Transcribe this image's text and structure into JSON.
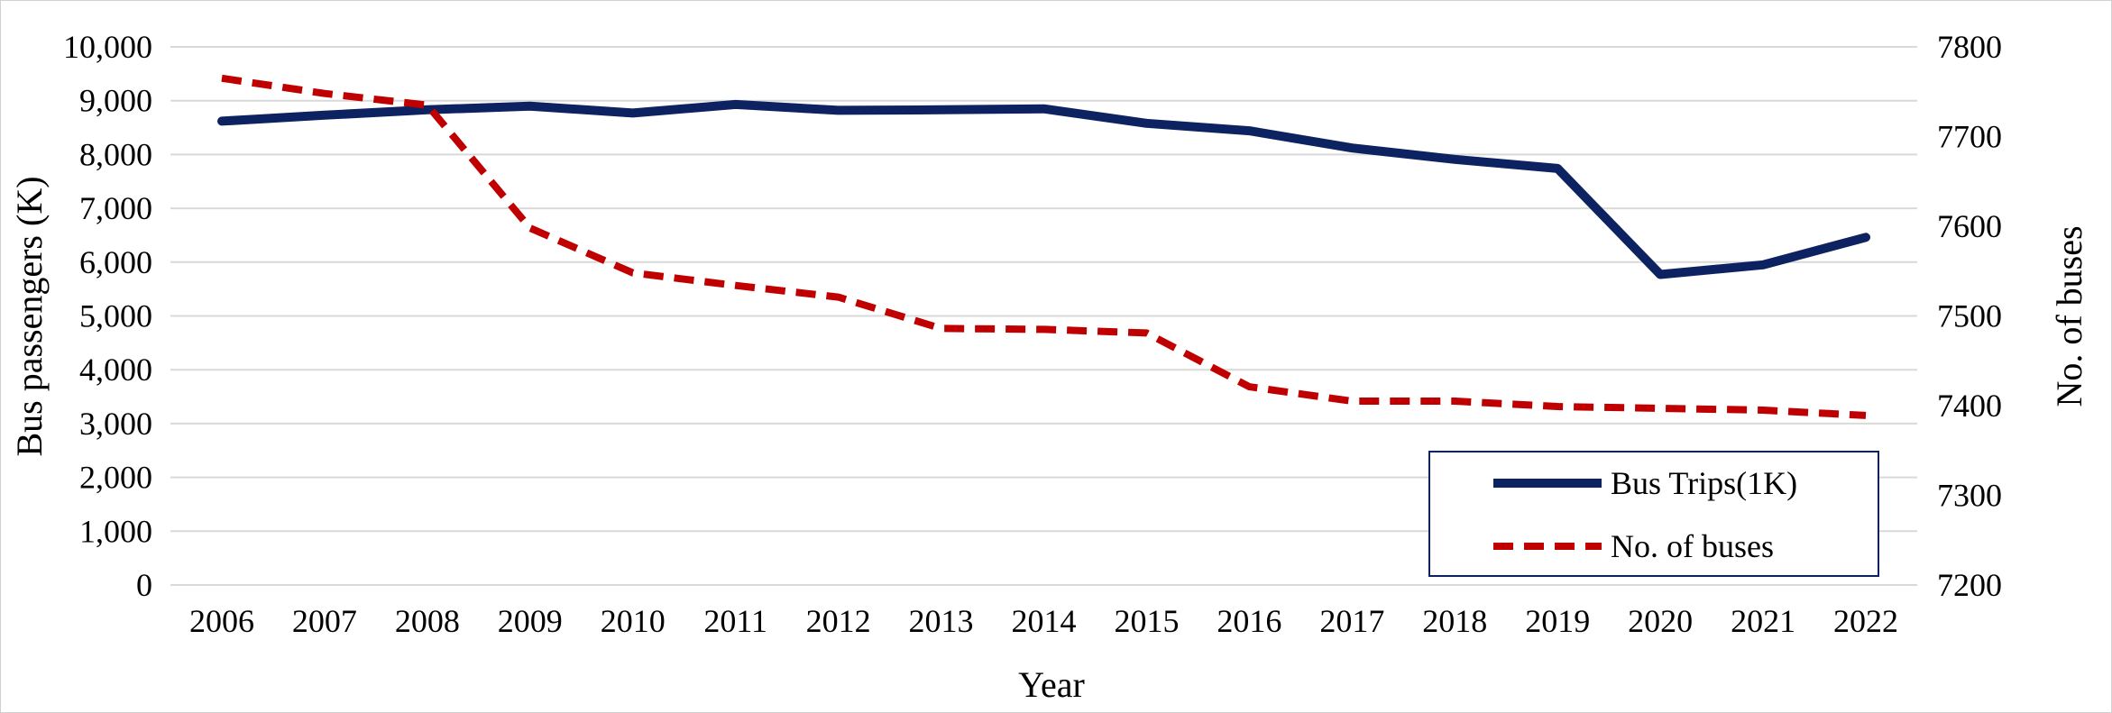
{
  "chart_data": {
    "type": "line",
    "x": [
      "2006",
      "2007",
      "2008",
      "2009",
      "2010",
      "2011",
      "2012",
      "2013",
      "2014",
      "2015",
      "2016",
      "2017",
      "2018",
      "2019",
      "2020",
      "2021",
      "2022"
    ],
    "xlabel": "Year",
    "ylabel": "Bus passengers (K)",
    "y2label": "No. of buses",
    "ylim": [
      0,
      10000
    ],
    "y2lim": [
      7200,
      7800
    ],
    "yticks": [
      "0",
      "1,000",
      "2,000",
      "3,000",
      "4,000",
      "5,000",
      "6,000",
      "7,000",
      "8,000",
      "9,000",
      "10,000"
    ],
    "y2ticks": [
      "7200",
      "7300",
      "7400",
      "7500",
      "7600",
      "7700",
      "7800"
    ],
    "grid": "horizontal",
    "legend_position": "bottom-right",
    "series": [
      {
        "name": "Bus Trips(1K)",
        "axis": "left",
        "style": "solid",
        "color": "#0d2260",
        "values": [
          8620,
          8730,
          8830,
          8900,
          8770,
          8930,
          8820,
          8830,
          8850,
          8580,
          8440,
          8120,
          7910,
          7740,
          5770,
          5950,
          6460
        ]
      },
      {
        "name": "No. of buses",
        "axis": "right",
        "style": "dashed",
        "color": "#c00000",
        "values": [
          7765,
          7748,
          7735,
          7598,
          7548,
          7534,
          7521,
          7486,
          7485,
          7481,
          7421,
          7405,
          7405,
          7399,
          7397,
          7395,
          7389
        ]
      }
    ]
  }
}
